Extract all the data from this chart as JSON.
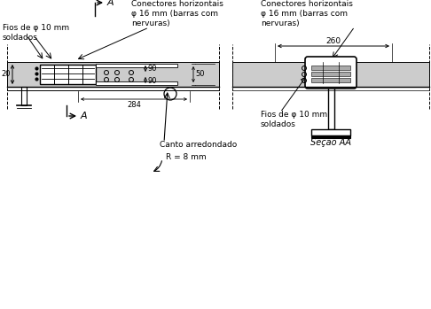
{
  "bg_color": "#ffffff",
  "slab_color": "#cccccc",
  "line_color": "#000000",
  "labels": {
    "fios_left": "Fios de φ 10 mm\nsoldados",
    "conectores_left": "Conectores horizontais\nφ 16 mm (barras com\nnervuras)",
    "conectores_right": "Conectores horizontais\nφ 16 mm (barras com\nnervuras)",
    "fios_right": "Fios de φ 10 mm\nsoldados",
    "secao": "Seção AA",
    "dim_90a": "90",
    "dim_90b": "90",
    "dim_50": "50",
    "dim_20": "20",
    "dim_284": "284",
    "dim_260": "260",
    "canto": "Canto arredondado",
    "R": "R = 8 mm",
    "A_top": "A",
    "A_bot": "A"
  }
}
